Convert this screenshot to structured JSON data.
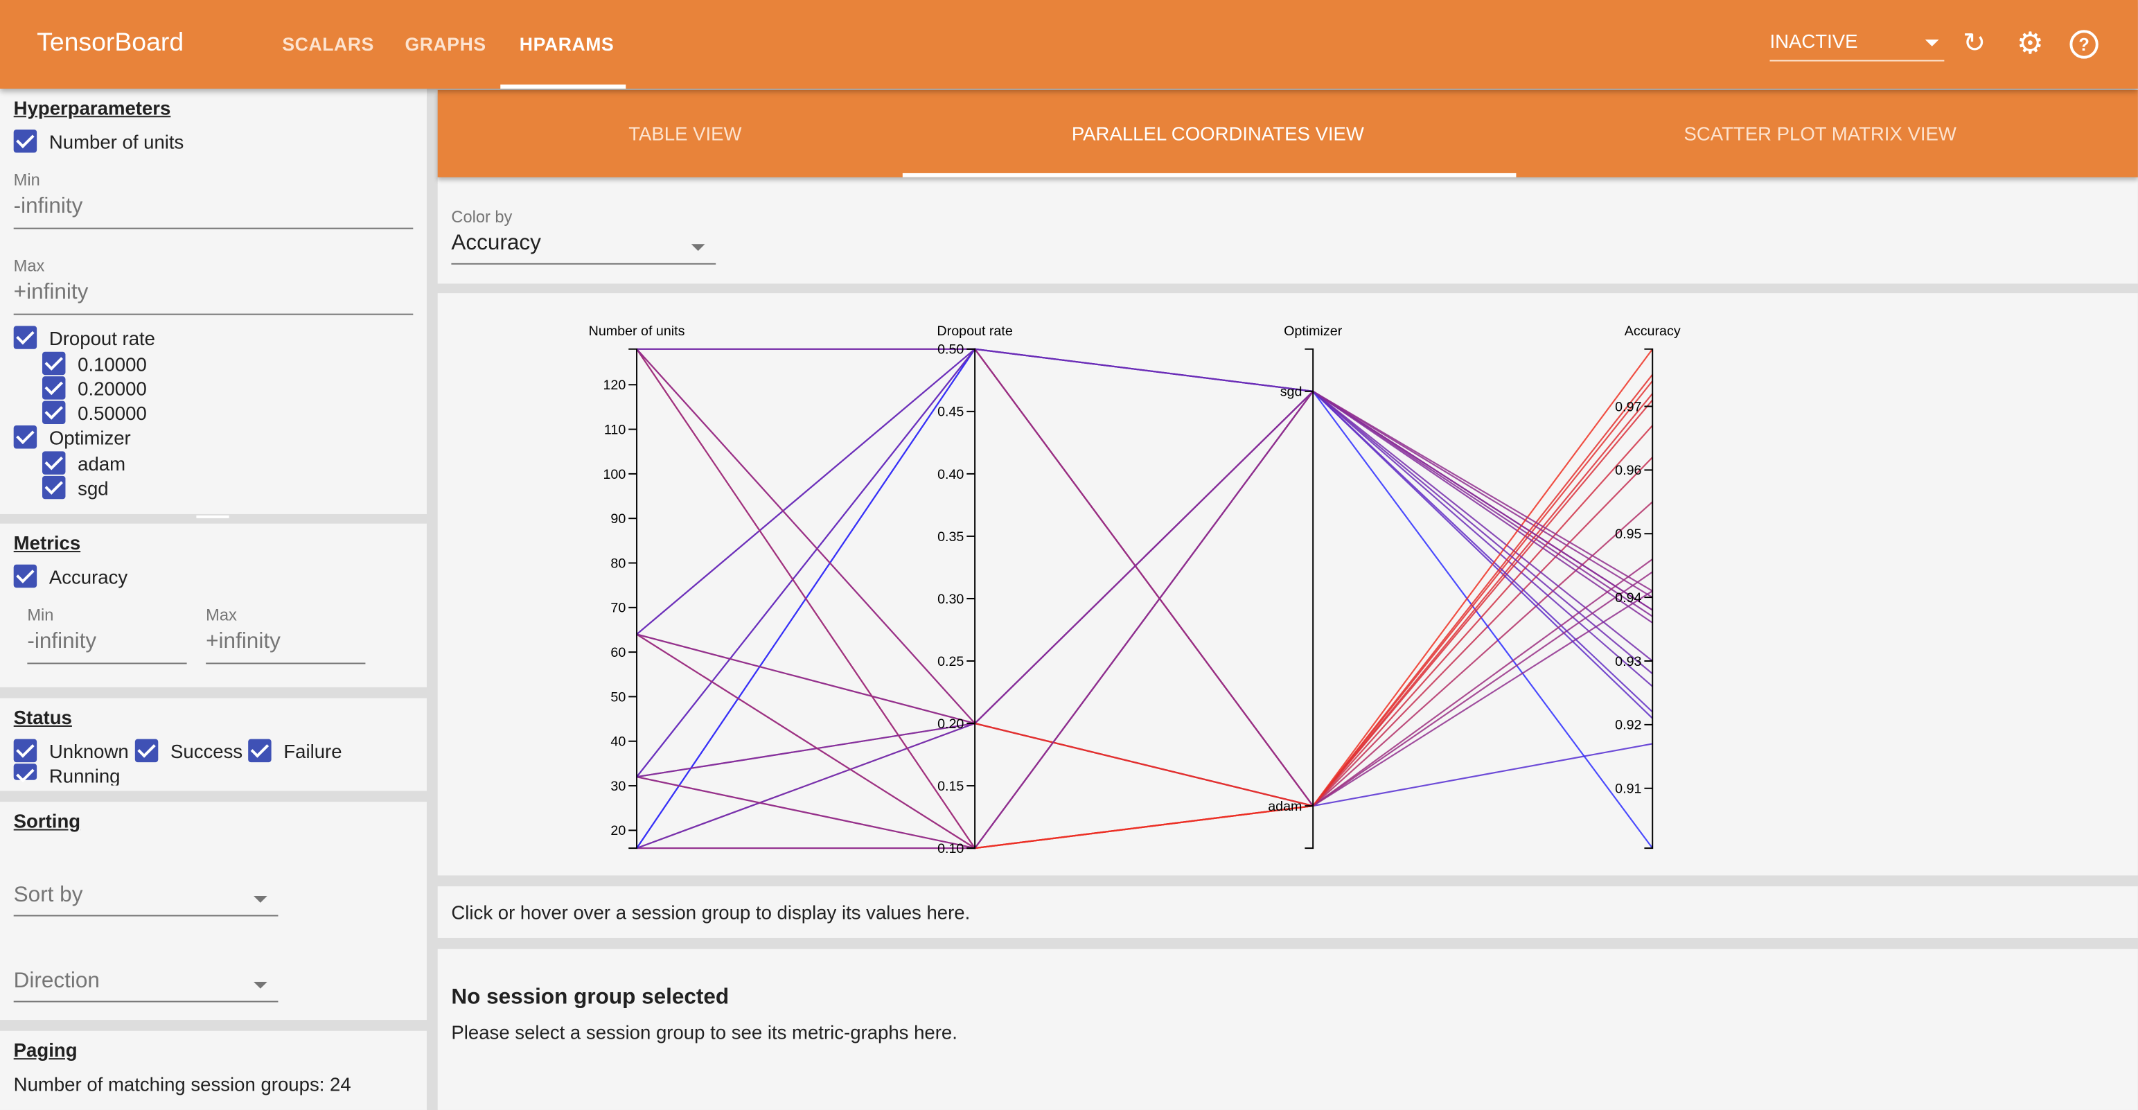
{
  "header": {
    "title": "TensorBoard",
    "tabs": [
      "SCALARS",
      "GRAPHS",
      "HPARAMS"
    ],
    "active_tab": "HPARAMS",
    "run_selector": "INACTIVE",
    "icons": [
      "refresh-icon",
      "settings-icon",
      "help-icon"
    ]
  },
  "sidebar": {
    "hyperparameters": {
      "title": "Hyperparameters",
      "units_label": "Number of units",
      "min_label": "Min",
      "min_value": "-infinity",
      "max_label": "Max",
      "max_value": "+infinity",
      "dropout_label": "Dropout rate",
      "dropout_values": [
        "0.10000",
        "0.20000",
        "0.50000"
      ],
      "optimizer_label": "Optimizer",
      "optimizer_values": [
        "adam",
        "sgd"
      ]
    },
    "metrics": {
      "title": "Metrics",
      "accuracy_label": "Accuracy",
      "min_label": "Min",
      "min_value": "-infinity",
      "max_label": "Max",
      "max_value": "+infinity"
    },
    "status": {
      "title": "Status",
      "items": [
        "Unknown",
        "Success",
        "Failure",
        "Running"
      ]
    },
    "sorting": {
      "title": "Sorting",
      "sort_by": "Sort by",
      "direction": "Direction"
    },
    "paging": {
      "title": "Paging",
      "text": "Number of matching session groups: 24"
    }
  },
  "main": {
    "views": [
      "TABLE VIEW",
      "PARALLEL COORDINATES VIEW",
      "SCATTER PLOT MATRIX VIEW"
    ],
    "active_view": "PARALLEL COORDINATES VIEW",
    "color_by_label": "Color by",
    "color_by_value": "Accuracy",
    "hover_hint": "Click or hover over a session group to display its values here.",
    "no_selection_title": "No session group selected",
    "no_selection_text": "Please select a session group to see its metric-graphs here."
  },
  "colors": {
    "accent": "#e8833a",
    "checkbox": "#3f51b5",
    "low": "#2b2bff",
    "high": "#ee3022"
  },
  "chart_data": {
    "type": "parallel-coordinates",
    "axes": [
      {
        "name": "Number of units",
        "kind": "linear",
        "domain": [
          16,
          128
        ],
        "ticks": [
          20,
          30,
          40,
          50,
          60,
          70,
          80,
          90,
          100,
          110,
          120
        ]
      },
      {
        "name": "Dropout rate",
        "kind": "linear",
        "domain": [
          0.1,
          0.5
        ],
        "ticks": [
          "0.10",
          "0.15",
          "0.20",
          "0.25",
          "0.30",
          "0.35",
          "0.40",
          "0.45",
          "0.50"
        ]
      },
      {
        "name": "Optimizer",
        "kind": "categorical",
        "domain": [
          "sgd",
          "adam"
        ],
        "ticks": [
          "sgd",
          "adam"
        ]
      },
      {
        "name": "Accuracy",
        "kind": "linear",
        "domain": [
          0.9006,
          0.979
        ],
        "ticks": [
          "0.91",
          "0.92",
          "0.93",
          "0.94",
          "0.95",
          "0.96",
          "0.97"
        ]
      }
    ],
    "color_by": "Accuracy",
    "rows": [
      [
        16,
        0.1,
        "adam",
        0.962
      ],
      [
        16,
        0.2,
        "adam",
        0.955
      ],
      [
        16,
        0.5,
        "adam",
        0.917
      ],
      [
        16,
        0.1,
        "sgd",
        0.938
      ],
      [
        16,
        0.2,
        "sgd",
        0.926
      ],
      [
        16,
        0.5,
        "sgd",
        0.9006
      ],
      [
        32,
        0.1,
        "adam",
        0.971
      ],
      [
        32,
        0.2,
        "adam",
        0.967
      ],
      [
        32,
        0.5,
        "adam",
        0.941
      ],
      [
        32,
        0.1,
        "sgd",
        0.937
      ],
      [
        32,
        0.2,
        "sgd",
        0.93
      ],
      [
        32,
        0.5,
        "sgd",
        0.921
      ],
      [
        64,
        0.1,
        "adam",
        0.974
      ],
      [
        64,
        0.2,
        "adam",
        0.972
      ],
      [
        64,
        0.5,
        "adam",
        0.944
      ],
      [
        64,
        0.1,
        "sgd",
        0.94
      ],
      [
        64,
        0.2,
        "sgd",
        0.936
      ],
      [
        64,
        0.5,
        "sgd",
        0.922
      ],
      [
        128,
        0.1,
        "adam",
        0.979
      ],
      [
        128,
        0.2,
        "adam",
        0.975
      ],
      [
        128,
        0.5,
        "adam",
        0.946
      ],
      [
        128,
        0.1,
        "sgd",
        0.941
      ],
      [
        128,
        0.2,
        "sgd",
        0.938
      ],
      [
        128,
        0.5,
        "sgd",
        0.928
      ]
    ]
  }
}
